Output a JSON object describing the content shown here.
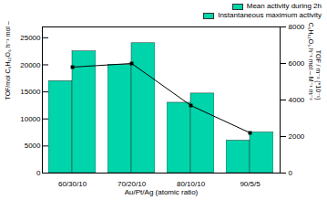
{
  "chart_data": {
    "type": "bar",
    "xlabel": "Au/Pt/Ag (atomic ratio)",
    "ylabel": "TOF/mol C₆H₁₂O₆ h⁻¹ mol – M⁻¹",
    "y2label": "TOF / m⁻² (*10⁻¹)\nmol C₆H₁₂O₆ h⁻¹ mol – M⁻¹ m⁻²",
    "categories": [
      "60/30/10",
      "70/20/10",
      "80/10/10",
      "90/5/5"
    ],
    "series": [
      {
        "name": "Mean activity during 2h",
        "color": "#00D4AA",
        "values": [
          17000,
          20000,
          13000,
          6000
        ]
      },
      {
        "name": "Instantaneous maximum activity",
        "color": "#00D4AA",
        "values": [
          22500,
          24000,
          14700,
          7500
        ]
      },
      {
        "type": "line",
        "axis": "y2",
        "color": "black",
        "marker": "square",
        "values": [
          5800,
          6000,
          3700,
          2200
        ]
      }
    ],
    "ylim": [
      0,
      27000
    ],
    "yticks": [
      0,
      5000,
      10000,
      15000,
      20000,
      25000
    ],
    "y2lim": [
      0,
      8000
    ],
    "y2ticks": [
      0,
      2000,
      4000,
      6000,
      8000
    ],
    "legend": "upper right"
  }
}
